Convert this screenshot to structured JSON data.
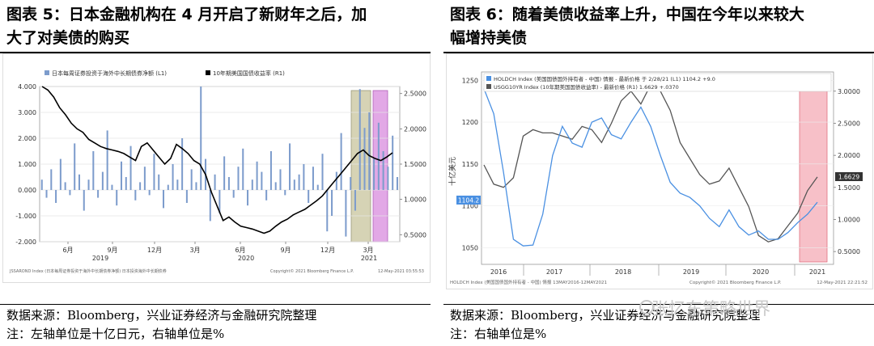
{
  "figure5": {
    "title_line1": "图表 5：日本金融机构在 4 月开启了新财年之后，加",
    "title_line2": "大了对美债的购买",
    "legend_bar": "日本每周证券投资于海外中长期债券净额 (L1)",
    "legend_line": "10年期美国国债收益率 (R1)",
    "footer_left": "JSSAROND Index (日本每周证券投资于海外中长期债券净额) 日本投资海外中长期债券",
    "footer_mid": "Copyright© 2021 Bloomberg Finance L.P.",
    "footer_right": "12-May-2021 03:55:53",
    "source": "数据来源：Bloomberg，兴业证券经济与金融研究院整理",
    "note": "注：左轴单位是十亿日元，右轴单位是%"
  },
  "figure6": {
    "title_line1": "图表 6：随着美债收益率上升，中国在今年以来较大",
    "title_line2": "幅增持美债",
    "legend_holdch": "HOLDCH Index (美国国债国外持有者 - 中国) 情报 - 最新价格 于 2/28/21 (L1) 1104.2 +9.0",
    "legend_usgg": "USGG10YR Index (10年期美国国债收益率) - 最新价格 (R1) 1.6629 +.0370",
    "ylabel": "十亿美元",
    "tag_left": "1104.2",
    "tag_right": "1.6629",
    "footer_left": "HOLDCH Index (美国国债国外持有者 - 中国) 情报 13MAY2016-12MAY2021",
    "footer_mid": "Copyright© 2021 Bloomberg Finance L.P.",
    "footer_right": "12-May-2021 22:21:52",
    "source": "数据来源：Bloomberg，兴业证券经济与金融研究院整理",
    "note": "注：右轴单位是%"
  },
  "watermark": "张忆东策略世界",
  "chart_data": [
    {
      "type": "bar",
      "title": "日本金融机构在 4 月开启了新财年之后，加大了对美债的购买",
      "series": [
        {
          "name": "日本每周证券投资于海外中长期债券净额 (L1)",
          "type": "bar",
          "axis": "left",
          "values": [
            0.4,
            -0.3,
            0.8,
            -0.5,
            1.2,
            0.3,
            -0.2,
            1.8,
            0.6,
            -0.8,
            0.4,
            1.5,
            -0.3,
            0.7,
            2.3,
            0.2,
            -0.6,
            1.1,
            0.5,
            1.7,
            -0.4,
            0.3,
            0.9,
            -0.2,
            1.4,
            0.6,
            -0.7,
            0.2,
            1.0,
            0.4,
            2.0,
            -0.5,
            0.8,
            0.3,
            4.0,
            1.2,
            -1.2,
            0.6,
            -0.9,
            1.3,
            0.5,
            -0.3,
            0.9,
            1.6,
            -0.6,
            0.4,
            1.1,
            0.7,
            -0.4,
            1.5,
            0.3,
            0.8,
            -0.2,
            1.8,
            0.4,
            0.6,
            1.0,
            -0.5,
            0.9,
            0.2,
            1.4,
            -1.6,
            -1.0,
            0.7,
            2.2,
            -1.8,
            0.5,
            -0.8,
            3.9,
            2.4,
            3.0,
            1.2,
            2.6,
            1.5,
            0.9,
            2.1,
            0.5
          ]
        },
        {
          "name": "10年期美国国债收益率 (R1)",
          "type": "line",
          "axis": "right",
          "values": [
            2.6,
            2.55,
            2.45,
            2.3,
            2.2,
            2.08,
            2.0,
            1.95,
            1.85,
            1.8,
            1.75,
            1.72,
            1.7,
            1.68,
            1.65,
            1.6,
            1.55,
            1.75,
            1.8,
            1.7,
            1.6,
            1.5,
            1.58,
            1.78,
            1.72,
            1.65,
            1.55,
            1.5,
            1.35,
            1.1,
            0.9,
            0.7,
            0.75,
            0.68,
            0.62,
            0.6,
            0.58,
            0.55,
            0.52,
            0.55,
            0.62,
            0.68,
            0.72,
            0.78,
            0.82,
            0.86,
            0.92,
            0.98,
            1.05,
            1.15,
            1.25,
            1.35,
            1.45,
            1.55,
            1.65,
            1.7,
            1.62,
            1.58,
            1.55,
            1.6,
            1.66
          ]
        }
      ],
      "x_tick_labels": [
        "6月",
        "9月",
        "12月",
        "3月",
        "6月",
        "9月",
        "12月",
        "3月"
      ],
      "x_year_labels": [
        "2019",
        "2020",
        "2021"
      ],
      "y_left_ticks": [
        "4.000",
        "3.000",
        "2.000",
        "1.000",
        "0.000",
        "-1.000",
        "-2.000"
      ],
      "y_right_ticks": [
        "2.5000",
        "2.0000",
        "1.5000",
        "1.0000",
        "0.5000"
      ],
      "ylim_left": [
        -2.0,
        4.0
      ],
      "ylim_right": [
        0.4,
        2.6
      ],
      "highlights": [
        {
          "label": "olive",
          "color": "#d6d3b5"
        },
        {
          "label": "pink",
          "color": "#e2a8e6"
        }
      ],
      "legend": "top-left",
      "grid": true
    },
    {
      "type": "line",
      "title": "随着美债收益率上升，中国在今年以来较大幅增持美债",
      "series": [
        {
          "name": "HOLDCH Index",
          "axis": "left",
          "color": "#4a90e2",
          "values": [
            1240,
            1210,
            1140,
            1060,
            1052,
            1053,
            1090,
            1160,
            1195,
            1175,
            1170,
            1200,
            1205,
            1185,
            1180,
            1200,
            1218,
            1195,
            1160,
            1128,
            1115,
            1110,
            1100,
            1085,
            1075,
            1095,
            1075,
            1065,
            1070,
            1060,
            1060,
            1068,
            1080,
            1090,
            1104.2
          ]
        },
        {
          "name": "USGG10YR Index",
          "axis": "right",
          "color": "#555555",
          "values": [
            1.85,
            1.55,
            1.5,
            1.65,
            2.3,
            2.4,
            2.35,
            2.35,
            2.3,
            2.25,
            2.45,
            2.4,
            2.2,
            2.5,
            2.85,
            3.0,
            2.8,
            3.1,
            3.0,
            2.7,
            2.2,
            1.95,
            1.7,
            1.55,
            1.6,
            1.8,
            1.5,
            1.2,
            0.75,
            0.65,
            0.7,
            0.9,
            1.1,
            1.45,
            1.6629
          ]
        }
      ],
      "x_year_labels": [
        "2016",
        "2017",
        "2018",
        "2019",
        "2020",
        "2021"
      ],
      "y_left_ticks": [
        "1250",
        "1200",
        "1150",
        "1100",
        "1050"
      ],
      "y_right_ticks": [
        "3.0000",
        "2.5000",
        "2.0000",
        "1.5000",
        "1.0000",
        "0.5000"
      ],
      "ylim_left": [
        1030,
        1260
      ],
      "ylim_right": [
        0.3,
        3.3
      ],
      "highlights": [
        {
          "label": "pink",
          "color": "#f7c0c8"
        }
      ],
      "legend": "top-left",
      "grid": true
    }
  ]
}
